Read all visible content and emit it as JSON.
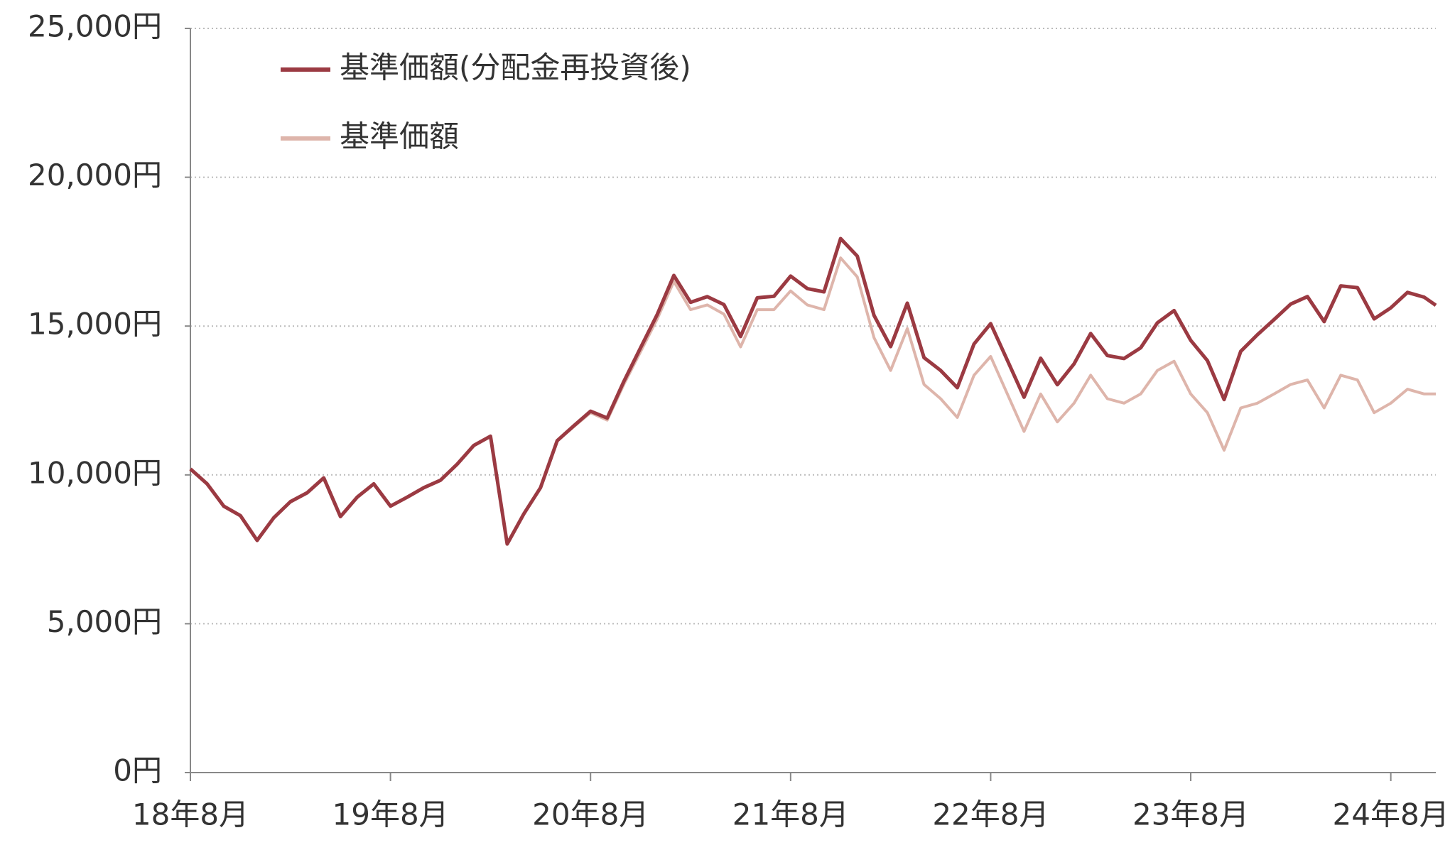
{
  "chart_data": {
    "type": "line",
    "x": [
      0,
      1,
      2,
      3,
      4,
      5,
      6,
      7,
      8,
      9,
      10,
      11,
      12,
      13,
      14,
      15,
      16,
      17,
      18,
      19,
      20,
      21,
      22,
      23,
      24,
      25,
      26,
      27,
      28,
      29,
      30,
      31,
      32,
      33,
      34,
      35,
      36,
      37,
      38,
      39,
      40,
      41,
      42,
      43,
      44,
      45,
      46,
      47,
      48,
      49,
      50,
      51,
      52,
      53,
      54,
      55,
      56,
      57,
      58,
      59,
      60,
      61,
      62,
      63,
      64,
      65,
      66,
      67,
      68,
      69,
      70,
      71,
      72,
      73,
      74,
      74.7
    ],
    "series": [
      {
        "name": "基準価額(分配金再投資後)",
        "color": "#9b3a42",
        "values": [
          10200,
          9700,
          8950,
          8630,
          7800,
          8560,
          9100,
          9400,
          9900,
          8600,
          9250,
          9700,
          8950,
          9250,
          9570,
          9820,
          10360,
          10990,
          11300,
          7680,
          8690,
          9570,
          11150,
          11650,
          12140,
          11910,
          13140,
          14270,
          15390,
          16700,
          15800,
          15990,
          15720,
          14650,
          15950,
          16000,
          16680,
          16260,
          16150,
          17940,
          17350,
          15360,
          14310,
          15770,
          13940,
          13510,
          12930,
          14400,
          15080,
          13850,
          12610,
          13920,
          13030,
          13730,
          14750,
          14010,
          13910,
          14270,
          15110,
          15520,
          14520,
          13840,
          12530,
          14150,
          14710,
          15220,
          15740,
          15990,
          15150,
          16350,
          16290,
          15240,
          15610,
          16130,
          15970,
          15700
        ]
      },
      {
        "name": "基準価額",
        "color": "#deb5ab",
        "values": [
          10200,
          9700,
          8950,
          8630,
          7800,
          8560,
          9100,
          9400,
          9900,
          8600,
          9250,
          9700,
          8950,
          9250,
          9570,
          9820,
          10360,
          10990,
          11300,
          7680,
          8690,
          9570,
          11150,
          11620,
          12090,
          11840,
          13040,
          14140,
          15240,
          16500,
          15550,
          15710,
          15400,
          14300,
          15550,
          15550,
          16180,
          15710,
          15550,
          17290,
          16650,
          14610,
          13510,
          14920,
          13040,
          12560,
          11930,
          13350,
          13980,
          12720,
          11460,
          12720,
          11780,
          12410,
          13350,
          12560,
          12410,
          12720,
          13510,
          13820,
          12720,
          12090,
          10830,
          12250,
          12410,
          12720,
          13040,
          13190,
          12250,
          13350,
          13190,
          12090,
          12410,
          12880,
          12720,
          12720
        ]
      }
    ],
    "xlim": [
      0,
      74.7
    ],
    "xticks": [
      {
        "value": 0,
        "label": "18年8月"
      },
      {
        "value": 12,
        "label": "19年8月"
      },
      {
        "value": 24,
        "label": "20年8月"
      },
      {
        "value": 36,
        "label": "21年8月"
      },
      {
        "value": 48,
        "label": "22年8月"
      },
      {
        "value": 60,
        "label": "23年8月"
      },
      {
        "value": 72,
        "label": "24年8月"
      }
    ],
    "ylim": [
      0,
      25000
    ],
    "yticks": [
      {
        "value": 0,
        "label": "0円"
      },
      {
        "value": 5000,
        "label": "5,000円"
      },
      {
        "value": 10000,
        "label": "10,000円"
      },
      {
        "value": 15000,
        "label": "15,000円"
      },
      {
        "value": 20000,
        "label": "20,000円"
      },
      {
        "value": 25000,
        "label": "25,000円"
      }
    ],
    "grid": true
  }
}
